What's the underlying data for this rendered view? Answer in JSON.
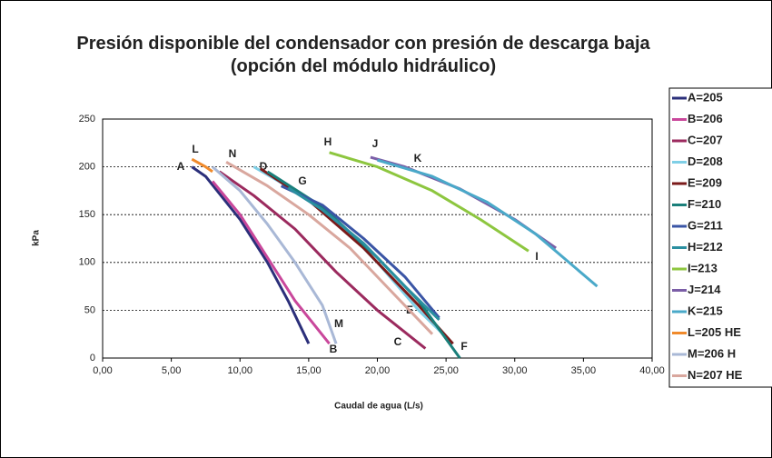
{
  "chart_data": {
    "type": "line",
    "title": "Presión disponible del condensador con presión de descarga baja (opción del módulo hidráulico)",
    "xlabel": "Caudal de agua (L/s)",
    "ylabel": "kPa",
    "xlim": [
      0,
      40
    ],
    "ylim": [
      0,
      250
    ],
    "xticks": [
      {
        "value": 0,
        "label": "0,00"
      },
      {
        "value": 5,
        "label": "5,00"
      },
      {
        "value": 10,
        "label": "10,00"
      },
      {
        "value": 15,
        "label": "15,00"
      },
      {
        "value": 20,
        "label": "20,00"
      },
      {
        "value": 25,
        "label": "25,00"
      },
      {
        "value": 30,
        "label": "30,00"
      },
      {
        "value": 35,
        "label": "35,00"
      },
      {
        "value": 40,
        "label": "40,00"
      }
    ],
    "yticks": [
      0,
      50,
      100,
      150,
      200,
      250
    ],
    "grid": true,
    "series": [
      {
        "name": "A=205",
        "label": "A",
        "color": "#2b2f7a",
        "x": [
          6.5,
          7.5,
          10,
          12,
          13.5,
          15
        ],
        "values": [
          200,
          190,
          145,
          100,
          60,
          15
        ]
      },
      {
        "name": "B=206",
        "label": "B",
        "color": "#c9479b",
        "x": [
          8,
          10,
          12,
          14,
          16.5
        ],
        "values": [
          185,
          150,
          105,
          60,
          15
        ]
      },
      {
        "name": "C=207",
        "label": "C",
        "color": "#9b2a5e",
        "x": [
          8.5,
          11,
          14,
          17,
          20,
          23.5
        ],
        "values": [
          195,
          170,
          135,
          90,
          50,
          10
        ]
      },
      {
        "name": "D=208",
        "label": "D",
        "color": "#7fcfe6",
        "x": [
          11,
          14,
          17,
          20,
          23,
          25.5
        ],
        "values": [
          200,
          175,
          145,
          100,
          50,
          15
        ]
      },
      {
        "name": "E=209",
        "label": "E",
        "color": "#7a1a1a",
        "x": [
          11.5,
          15,
          19,
          23,
          25.5
        ],
        "values": [
          198,
          165,
          115,
          55,
          15
        ]
      },
      {
        "name": "F=210",
        "label": "F",
        "color": "#1a7f7a",
        "x": [
          12,
          16,
          20,
          23,
          26
        ],
        "values": [
          195,
          158,
          105,
          60,
          0
        ]
      },
      {
        "name": "G=211",
        "label": "G",
        "color": "#3a55a5",
        "x": [
          13,
          16,
          19,
          22,
          24.5
        ],
        "values": [
          180,
          160,
          125,
          85,
          42
        ]
      },
      {
        "name": "H=212",
        "label": "H",
        "color": "#2a8fa0",
        "x": [
          13.5,
          16,
          19,
          22,
          24.5
        ],
        "values": [
          178,
          155,
          120,
          75,
          40
        ]
      },
      {
        "name": "I=213",
        "label": "I",
        "color": "#8dc63f",
        "x": [
          16.5,
          20,
          24,
          27.5,
          31
        ],
        "values": [
          215,
          200,
          175,
          145,
          112
        ]
      },
      {
        "name": "J=214",
        "label": "J",
        "color": "#7b5ea7",
        "x": [
          19.5,
          22,
          26,
          30,
          33
        ],
        "values": [
          210,
          200,
          177,
          145,
          115
        ]
      },
      {
        "name": "K=215",
        "label": "K",
        "color": "#4aa9c9",
        "x": [
          20,
          24,
          28,
          31.5,
          36
        ],
        "values": [
          207,
          190,
          163,
          130,
          75
        ]
      },
      {
        "name": "L=205 HE",
        "label": "L",
        "color": "#f08a2b",
        "x": [
          6.5,
          7.5,
          8
        ],
        "values": [
          208,
          200,
          195
        ]
      },
      {
        "name": "M=206 H",
        "label": "M",
        "color": "#a9b8d6",
        "x": [
          8,
          10,
          12,
          14,
          16,
          17
        ],
        "values": [
          200,
          175,
          140,
          100,
          55,
          15
        ]
      },
      {
        "name": "N=207 HE",
        "label": "N",
        "color": "#d9a79e",
        "x": [
          9,
          12,
          15,
          18,
          21,
          24
        ],
        "values": [
          205,
          180,
          150,
          115,
          70,
          25
        ]
      }
    ]
  }
}
